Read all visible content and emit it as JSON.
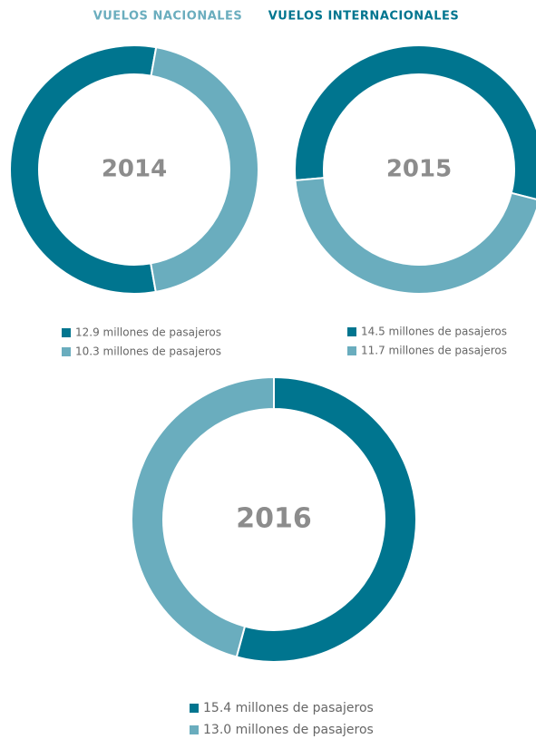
{
  "header": {
    "items": [
      {
        "text": "VUELOS NACIONALES",
        "color": "#6aadbe"
      },
      {
        "text": "VUELOS INTERNACIONALES",
        "color": "#00758f"
      }
    ]
  },
  "chart_data": [
    {
      "type": "donut",
      "title": "2014",
      "values": [
        12.9,
        10.3
      ],
      "value_labels": [
        "12.9 millones de pasajeros",
        "10.3 millones de pasajeros"
      ],
      "colors": [
        "#00758f",
        "#6aadbe"
      ]
    },
    {
      "type": "donut",
      "title": "2015",
      "values": [
        14.5,
        11.7
      ],
      "value_labels": [
        "14.5 millones de pasajeros",
        "11.7 millones de pasajeros"
      ],
      "colors": [
        "#00758f",
        "#6aadbe"
      ]
    },
    {
      "type": "donut",
      "title": "2016",
      "values": [
        15.4,
        13.0
      ],
      "value_labels": [
        "15.4 millones de pasajeros",
        "13.0 millones de pasajeros"
      ],
      "colors": [
        "#00758f",
        "#6aadbe"
      ]
    }
  ]
}
